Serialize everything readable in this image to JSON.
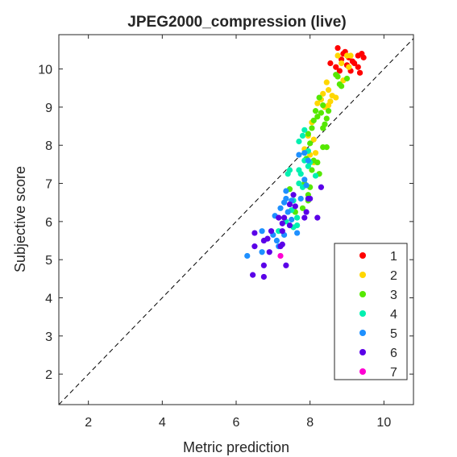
{
  "chart_data": {
    "type": "scatter",
    "title": "JPEG2000_compression (live)",
    "xlabel": "Metric prediction",
    "ylabel": "Subjective score",
    "xlim": [
      1.2,
      10.8
    ],
    "ylim": [
      1.2,
      10.9
    ],
    "xticks": [
      2,
      4,
      6,
      8,
      10
    ],
    "yticks": [
      2,
      3,
      4,
      5,
      6,
      7,
      8,
      9,
      10
    ],
    "reference_line": "dashed diagonal y = x",
    "grid": false,
    "legend_position": "bottom-right",
    "series": [
      {
        "name": "1",
        "color": "#ff0000",
        "points": [
          [
            8.75,
            10.55
          ],
          [
            8.9,
            10.4
          ],
          [
            9.05,
            10.3
          ],
          [
            8.55,
            10.15
          ],
          [
            8.7,
            10.05
          ],
          [
            8.85,
            10.25
          ],
          [
            9.0,
            10.1
          ],
          [
            9.15,
            10.2
          ],
          [
            9.3,
            10.35
          ],
          [
            9.45,
            10.3
          ],
          [
            9.3,
            10.05
          ],
          [
            9.1,
            9.95
          ],
          [
            9.35,
            9.9
          ],
          [
            8.95,
            10.45
          ],
          [
            8.8,
            9.95
          ],
          [
            9.2,
            10.15
          ],
          [
            9.4,
            10.4
          ]
        ]
      },
      {
        "name": "2",
        "color": "#ffd700",
        "points": [
          [
            8.75,
            10.35
          ],
          [
            8.85,
            10.15
          ],
          [
            9.0,
            10.35
          ],
          [
            9.1,
            10.35
          ],
          [
            9.05,
            10.05
          ],
          [
            8.9,
            9.7
          ],
          [
            8.45,
            9.65
          ],
          [
            8.35,
            9.35
          ],
          [
            8.5,
            9.45
          ],
          [
            8.6,
            9.3
          ],
          [
            8.7,
            9.25
          ],
          [
            8.55,
            9.15
          ],
          [
            8.3,
            9.2
          ],
          [
            8.4,
            9.0
          ],
          [
            8.2,
            9.1
          ],
          [
            8.5,
            9.05
          ],
          [
            8.05,
            8.6
          ],
          [
            7.95,
            8.25
          ],
          [
            8.1,
            8.15
          ],
          [
            7.85,
            7.9
          ],
          [
            8.0,
            7.75
          ],
          [
            8.1,
            7.55
          ],
          [
            8.15,
            7.8
          ]
        ]
      },
      {
        "name": "3",
        "color": "#55e800",
        "points": [
          [
            8.7,
            9.85
          ],
          [
            8.75,
            9.8
          ],
          [
            8.8,
            9.6
          ],
          [
            9.0,
            9.75
          ],
          [
            8.85,
            9.55
          ],
          [
            8.25,
            9.25
          ],
          [
            8.35,
            9.05
          ],
          [
            8.15,
            8.9
          ],
          [
            8.2,
            8.75
          ],
          [
            8.3,
            8.85
          ],
          [
            8.5,
            8.9
          ],
          [
            8.45,
            8.7
          ],
          [
            8.1,
            8.65
          ],
          [
            8.4,
            8.55
          ],
          [
            8.35,
            8.45
          ],
          [
            8.05,
            8.45
          ],
          [
            7.95,
            8.3
          ],
          [
            8.0,
            8.05
          ],
          [
            8.35,
            7.95
          ],
          [
            8.45,
            7.95
          ],
          [
            8.1,
            7.6
          ],
          [
            8.2,
            7.55
          ],
          [
            8.25,
            7.25
          ],
          [
            7.85,
            7.0
          ],
          [
            8.0,
            6.9
          ],
          [
            7.95,
            6.7
          ],
          [
            7.95,
            6.55
          ],
          [
            7.45,
            6.85
          ],
          [
            7.8,
            6.35
          ],
          [
            7.6,
            6.25
          ],
          [
            8.05,
            7.35
          ],
          [
            7.9,
            7.65
          ]
        ]
      },
      {
        "name": "4",
        "color": "#00f0b0",
        "points": [
          [
            7.85,
            8.4
          ],
          [
            7.8,
            8.25
          ],
          [
            7.7,
            8.1
          ],
          [
            7.95,
            7.85
          ],
          [
            7.85,
            7.6
          ],
          [
            8.0,
            7.55
          ],
          [
            8.15,
            7.2
          ],
          [
            7.7,
            7.35
          ],
          [
            7.75,
            7.25
          ],
          [
            7.45,
            7.35
          ],
          [
            7.4,
            7.25
          ],
          [
            7.7,
            7.0
          ],
          [
            7.8,
            6.9
          ],
          [
            7.55,
            6.55
          ],
          [
            7.5,
            6.3
          ],
          [
            7.65,
            6.1
          ],
          [
            7.65,
            5.9
          ],
          [
            7.55,
            5.85
          ],
          [
            7.35,
            6.0
          ],
          [
            7.15,
            5.75
          ],
          [
            7.95,
            7.45
          ]
        ]
      },
      {
        "name": "5",
        "color": "#1e90ff",
        "points": [
          [
            7.7,
            7.75
          ],
          [
            7.85,
            7.8
          ],
          [
            7.95,
            7.6
          ],
          [
            7.85,
            7.1
          ],
          [
            7.9,
            6.95
          ],
          [
            7.75,
            6.6
          ],
          [
            7.5,
            6.55
          ],
          [
            7.35,
            6.6
          ],
          [
            7.3,
            6.5
          ],
          [
            7.2,
            6.35
          ],
          [
            7.4,
            6.25
          ],
          [
            7.5,
            6.05
          ],
          [
            7.65,
            5.7
          ],
          [
            7.3,
            5.65
          ],
          [
            7.0,
            5.65
          ],
          [
            7.1,
            5.5
          ],
          [
            6.7,
            5.75
          ],
          [
            7.15,
            5.35
          ],
          [
            6.3,
            5.1
          ],
          [
            6.7,
            5.2
          ],
          [
            7.05,
            6.15
          ],
          [
            7.35,
            6.8
          ]
        ]
      },
      {
        "name": "6",
        "color": "#5a00e8",
        "points": [
          [
            8.0,
            6.6
          ],
          [
            7.9,
            6.25
          ],
          [
            8.2,
            6.1
          ],
          [
            7.85,
            6.1
          ],
          [
            7.6,
            6.4
          ],
          [
            7.45,
            6.45
          ],
          [
            7.3,
            6.1
          ],
          [
            7.15,
            6.1
          ],
          [
            7.25,
            5.95
          ],
          [
            7.45,
            5.9
          ],
          [
            7.25,
            5.75
          ],
          [
            7.2,
            5.35
          ],
          [
            7.25,
            5.4
          ],
          [
            6.95,
            5.75
          ],
          [
            6.85,
            5.55
          ],
          [
            6.5,
            5.7
          ],
          [
            6.75,
            5.5
          ],
          [
            6.5,
            5.35
          ],
          [
            6.9,
            5.2
          ],
          [
            6.75,
            4.85
          ],
          [
            7.35,
            4.85
          ],
          [
            6.45,
            4.6
          ],
          [
            6.75,
            4.55
          ],
          [
            8.3,
            6.9
          ],
          [
            7.95,
            6.6
          ],
          [
            7.55,
            6.7
          ]
        ]
      },
      {
        "name": "7",
        "color": "#ff00d2",
        "points": [
          [
            7.2,
            5.1
          ]
        ]
      }
    ]
  }
}
